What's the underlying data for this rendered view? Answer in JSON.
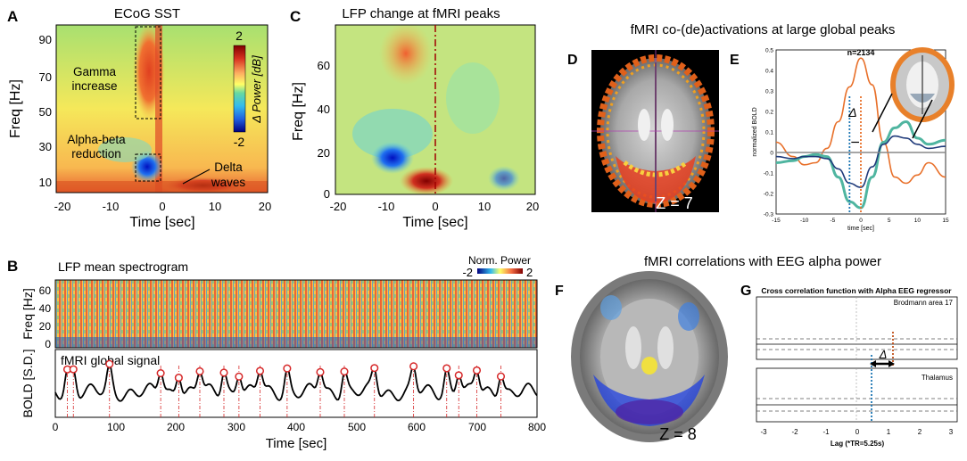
{
  "panels": {
    "a": {
      "letter": "A",
      "title": "ECoG SST",
      "xlabel": "Time [sec]",
      "ylabel": "Freq [Hz]",
      "xticks": [
        "-20",
        "-10",
        "0",
        "10",
        "20"
      ],
      "yticks": [
        "90",
        "70",
        "50",
        "30",
        "10"
      ],
      "ann_gamma_1": "Gamma",
      "ann_gamma_2": "increase",
      "ann_ab_1": "Alpha-beta",
      "ann_ab_2": "reduction",
      "ann_delta_1": "Delta",
      "ann_delta_2": "waves",
      "cbar_max": "2",
      "cbar_min": "-2",
      "cbar_label": "Δ Power [dB]"
    },
    "c": {
      "letter": "C",
      "title": "LFP change at fMRI peaks",
      "xlabel": "Time [sec]",
      "ylabel": "Freq [Hz]",
      "xticks": [
        "-20",
        "-10",
        "0",
        "10",
        "20"
      ],
      "yticks": [
        "60",
        "40",
        "20",
        "0"
      ]
    },
    "top_header": "fMRI co-(de)activations at large global peaks",
    "d": {
      "letter": "D",
      "zlabel": "Z = 7"
    },
    "e": {
      "letter": "E",
      "n_label": "n=2134",
      "delta": "Δ",
      "xlabel": "time [sec]",
      "ylabel": "normalized BOLD",
      "xticks": [
        "-15",
        "-10",
        "-5",
        "0",
        "5",
        "10",
        "15"
      ],
      "yticks": [
        "0.5",
        "0.4",
        "0.3",
        "0.2",
        "0.1",
        "0",
        "-0.1",
        "-0.2",
        "-0.3"
      ]
    },
    "b": {
      "letter": "B",
      "spec_title": "LFP mean spectrogram",
      "norm_label": "Norm. Power",
      "norm_min": "-2",
      "norm_max": "2",
      "spec_ylabel": "Freq [Hz]",
      "spec_yticks": [
        "60",
        "40",
        "20",
        "0"
      ],
      "bold_title": "fMRI global signal",
      "bold_ylabel": "BOLD [S.D.]",
      "xlabel": "Time [sec]",
      "xticks": [
        "0",
        "100",
        "200",
        "300",
        "400",
        "500",
        "600",
        "700",
        "800"
      ]
    },
    "bottom_header": "fMRI correlations with EEG alpha power",
    "f": {
      "letter": "F",
      "zlabel": "Z = 8"
    },
    "g": {
      "letter": "G",
      "title": "Cross correlation function with Alpha EEG regressor",
      "sub1": "Brodmann area 17",
      "sub2": "Thalamus",
      "delta": "Δ",
      "xlabel": "Lag (*TR=5.25s)",
      "xticks": [
        "-3",
        "-2",
        "-1",
        "0",
        "1",
        "2",
        "3"
      ]
    }
  },
  "colors": {
    "orange": "#e8702a",
    "teal": "#4fb5a0",
    "navy": "#1f3a7a",
    "red_dash": "#d62728",
    "blue_dash": "#1f77b4",
    "spec_red": "#a50f15"
  },
  "chart_data": [
    {
      "type": "heatmap",
      "panel": "A",
      "title": "ECoG SST",
      "xlabel": "Time [sec]",
      "ylabel": "Freq [Hz]",
      "xlim": [
        -20,
        20
      ],
      "ylim": [
        0,
        100
      ],
      "clim": [
        -2,
        2
      ],
      "features": [
        {
          "label": "Gamma increase",
          "t": [
            -5,
            0
          ],
          "f": [
            45,
            100
          ],
          "sign": "+"
        },
        {
          "label": "Alpha-beta reduction",
          "t": [
            -5,
            -1
          ],
          "f": [
            8,
            25
          ],
          "sign": "-"
        },
        {
          "label": "Delta waves",
          "t": [
            0,
            10
          ],
          "f": [
            0,
            8
          ],
          "sign": "+"
        }
      ]
    },
    {
      "type": "heatmap",
      "panel": "C",
      "title": "LFP change at fMRI peaks",
      "xlabel": "Time [sec]",
      "ylabel": "Freq [Hz]",
      "xlim": [
        -20,
        20
      ],
      "ylim": [
        0,
        75
      ]
    },
    {
      "type": "line",
      "panel": "E",
      "n": 2134,
      "xlabel": "time [sec]",
      "ylabel": "normalized BOLD",
      "xlim": [
        -15,
        15
      ],
      "ylim": [
        -0.3,
        0.5
      ],
      "x": [
        -15,
        -12,
        -10,
        -8,
        -6,
        -4,
        -2,
        0,
        2,
        4,
        6,
        8,
        10,
        12,
        15
      ],
      "series": [
        {
          "color": "#e8702a",
          "values": [
            0.05,
            -0.02,
            -0.06,
            -0.05,
            0.02,
            0.15,
            0.32,
            0.46,
            0.33,
            0.05,
            -0.12,
            -0.15,
            -0.11,
            -0.05,
            -0.12
          ]
        },
        {
          "color": "#4fb5a0",
          "values": [
            -0.05,
            -0.04,
            -0.02,
            -0.01,
            -0.02,
            -0.12,
            -0.24,
            -0.27,
            -0.12,
            0.05,
            0.12,
            0.15,
            0.07,
            0.04,
            0.06
          ]
        },
        {
          "color": "#1f3a7a",
          "values": [
            -0.02,
            -0.03,
            -0.02,
            -0.02,
            -0.03,
            -0.08,
            -0.15,
            -0.17,
            -0.07,
            0.04,
            0.08,
            0.07,
            0.04,
            0.02,
            0.03
          ]
        },
        {
          "color": "#888888",
          "values": [
            0,
            0,
            0,
            0,
            0,
            0,
            0,
            0,
            0,
            0,
            0,
            0,
            0,
            0,
            0
          ]
        }
      ],
      "markers": [
        {
          "x": -2,
          "color": "#1f77b4"
        },
        {
          "x": 0,
          "color": "#e8702a"
        }
      ]
    },
    {
      "type": "line",
      "panel": "B",
      "title": "fMRI global signal",
      "xlabel": "Time [sec]",
      "ylabel": "BOLD [S.D.]",
      "xlim": [
        0,
        800
      ],
      "peaks": [
        20,
        30,
        90,
        175,
        205,
        240,
        280,
        305,
        340,
        385,
        440,
        480,
        530,
        595,
        650,
        670,
        700,
        740
      ]
    }
  ]
}
